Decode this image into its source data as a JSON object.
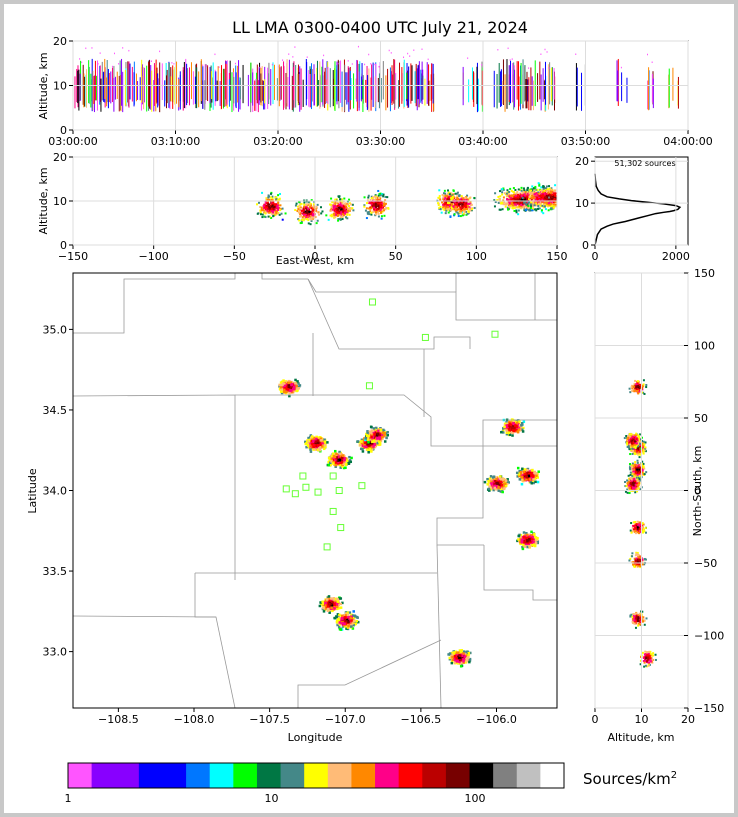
{
  "title": "LL LMA 0300-0400 UTC July 21, 2024",
  "source_count_label": "51,302 sources",
  "colorbar": {
    "unit_label": "Sources/km",
    "unit_exp": "2",
    "ticks": [
      "1",
      "10",
      "100"
    ],
    "colors": [
      "#ff55ff",
      "#8800ff",
      "#8800ff",
      "#0000ff",
      "#0000ff",
      "#0077ff",
      "#00ffff",
      "#00ff00",
      "#007744",
      "#448888",
      "#ffff00",
      "#ffbb77",
      "#ff8800",
      "#ff0088",
      "#ff0000",
      "#bb0000",
      "#770000",
      "#000000",
      "#808080",
      "#c0c0c0",
      "#ffffff"
    ]
  },
  "chart_data": [
    {
      "type": "scatter",
      "panel": "time-height",
      "xlabel": "",
      "ylabel": "Altitude, km",
      "x_ticks": [
        "03:00:00",
        "03:10:00",
        "03:20:00",
        "03:30:00",
        "03:40:00",
        "03:50:00",
        "04:00:00"
      ],
      "y_ticks": [
        "0",
        "10",
        "20"
      ],
      "xlim": [
        "03:00:00",
        "04:00:00"
      ],
      "ylim": [
        0,
        20
      ],
      "activity_minutes": [
        [
          0,
          16.5
        ],
        [
          17,
          35
        ],
        [
          38,
          40
        ],
        [
          41,
          47
        ],
        [
          49,
          50
        ],
        [
          53,
          54
        ],
        [
          56,
          56.5
        ],
        [
          58,
          59
        ]
      ],
      "grid": true
    },
    {
      "type": "heatmap",
      "panel": "east-west-height",
      "xlabel": "East-West, km",
      "ylabel": "Altitude, km",
      "x_ticks": [
        "−150",
        "−100",
        "−50",
        "0",
        "50",
        "100",
        "150"
      ],
      "y_ticks": [
        "0",
        "10",
        "20"
      ],
      "xlim": [
        -150,
        150
      ],
      "ylim": [
        0,
        20
      ],
      "cores": [
        [
          -28,
          9
        ],
        [
          -5,
          7.8
        ],
        [
          15,
          8.4
        ],
        [
          38,
          9.2
        ],
        [
          83,
          10
        ],
        [
          90,
          9.5
        ],
        [
          128,
          10.5
        ],
        [
          145,
          11
        ]
      ],
      "grid": true
    },
    {
      "type": "line",
      "panel": "altitude-histogram",
      "x_ticks": [
        "0",
        "2000"
      ],
      "y_ticks": [
        "0",
        "10",
        "20"
      ],
      "xlim": [
        0,
        2300
      ],
      "ylim": [
        0,
        21
      ],
      "x": [
        0,
        60,
        150,
        300,
        450,
        600,
        750,
        900,
        1100,
        1300,
        1500,
        1700,
        1850,
        1950,
        2050,
        2100,
        2000,
        1700,
        1300,
        900,
        600,
        300,
        150,
        80,
        30,
        10,
        0
      ],
      "y": [
        0,
        2.5,
        3.8,
        4.5,
        5.0,
        5.3,
        5.6,
        6.0,
        6.5,
        7.0,
        7.5,
        7.8,
        8.0,
        8.2,
        8.5,
        9.0,
        9.4,
        9.8,
        10.2,
        10.6,
        11.0,
        11.5,
        12.2,
        13.0,
        14.0,
        15.5,
        17.0
      ]
    },
    {
      "type": "heatmap",
      "panel": "plan-view",
      "xlabel": "Longitude",
      "ylabel": "Latitude",
      "x_ticks": [
        "−108.5",
        "−108.0",
        "−107.5",
        "−107.0",
        "−106.5",
        "−106.0"
      ],
      "y_ticks": [
        "33.0",
        "33.5",
        "34.0",
        "34.5",
        "35.0"
      ],
      "xlim": [
        -108.8,
        -105.6
      ],
      "ylim": [
        32.65,
        35.35
      ],
      "cores": [
        [
          -107.2,
          34.3
        ],
        [
          -107.05,
          34.2
        ],
        [
          -106.85,
          34.3
        ],
        [
          -106.8,
          34.35
        ],
        [
          -106.0,
          34.05
        ],
        [
          -105.8,
          34.1
        ],
        [
          -105.9,
          34.4
        ],
        [
          -105.8,
          33.7
        ],
        [
          -107.0,
          33.2
        ],
        [
          -106.25,
          32.97
        ],
        [
          -107.38,
          34.65
        ],
        [
          -107.1,
          33.3
        ]
      ],
      "stations": [
        [
          -106.82,
          35.17
        ],
        [
          -106.47,
          34.95
        ],
        [
          -106.01,
          34.97
        ],
        [
          -106.84,
          34.65
        ],
        [
          -107.28,
          34.09
        ],
        [
          -107.08,
          34.09
        ],
        [
          -107.39,
          34.01
        ],
        [
          -107.33,
          33.98
        ],
        [
          -107.26,
          34.02
        ],
        [
          -107.18,
          33.99
        ],
        [
          -107.04,
          34.0
        ],
        [
          -106.89,
          34.03
        ],
        [
          -107.08,
          33.87
        ],
        [
          -107.03,
          33.77
        ],
        [
          -107.12,
          33.65
        ]
      ],
      "grid": true
    },
    {
      "type": "heatmap",
      "panel": "north-south-height",
      "xlabel": "Altitude, km",
      "ylabel": "North-South, km",
      "x_ticks": [
        "0",
        "10",
        "20"
      ],
      "y_ticks": [
        "−150",
        "−100",
        "−50",
        "0",
        "50",
        "100",
        "150"
      ],
      "xlim": [
        0,
        20
      ],
      "ylim": [
        -150,
        150
      ],
      "cores": [
        [
          9,
          30
        ],
        [
          8,
          35
        ],
        [
          9,
          15
        ],
        [
          8,
          5
        ],
        [
          9,
          -25
        ],
        [
          9,
          -48
        ],
        [
          9,
          -88
        ],
        [
          11,
          -115
        ],
        [
          9,
          72
        ]
      ],
      "grid": true
    }
  ]
}
